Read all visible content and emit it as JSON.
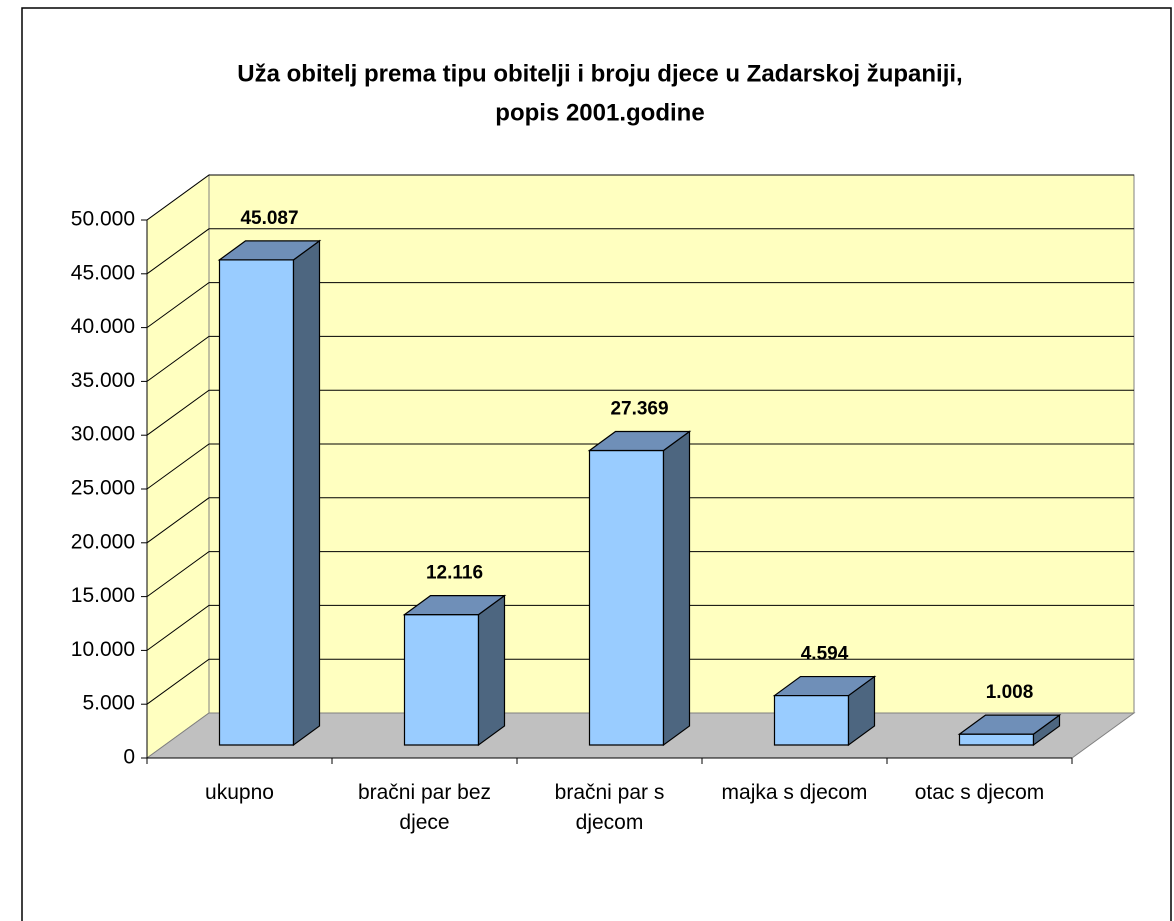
{
  "chart_data": {
    "type": "bar3d",
    "title": [
      "Uža obitelj prema tipu obitelji i broju djece u Zadarskoj županiji,",
      "popis 2001.godine"
    ],
    "categories": [
      "ukupno",
      "bračni par bez djece",
      "bračni par s djecom",
      "majka s djecom",
      "otac s djecom"
    ],
    "values": [
      45087,
      12116,
      27369,
      4594,
      1008
    ],
    "value_labels": [
      "45.087",
      "12.116",
      "27.369",
      "4.594",
      "1.008"
    ],
    "color": "#99ccff",
    "ylim": [
      0,
      50000
    ],
    "yticks": [
      0,
      {
        "value": 5000,
        "label": "5.000"
      },
      {
        "value": 10000,
        "label": "10.000"
      },
      {
        "value": 15000,
        "label": "15.000"
      },
      {
        "value": 20000,
        "label": "20.000"
      },
      {
        "value": 25000,
        "label": "25.000"
      },
      {
        "value": 30000,
        "label": "30.000"
      },
      {
        "value": 35000,
        "label": "35.000"
      },
      {
        "value": 40000,
        "label": "40.000"
      },
      {
        "value": 45000,
        "label": "45.000"
      },
      {
        "value": 50000,
        "label": "50.000"
      }
    ],
    "grid": true
  }
}
